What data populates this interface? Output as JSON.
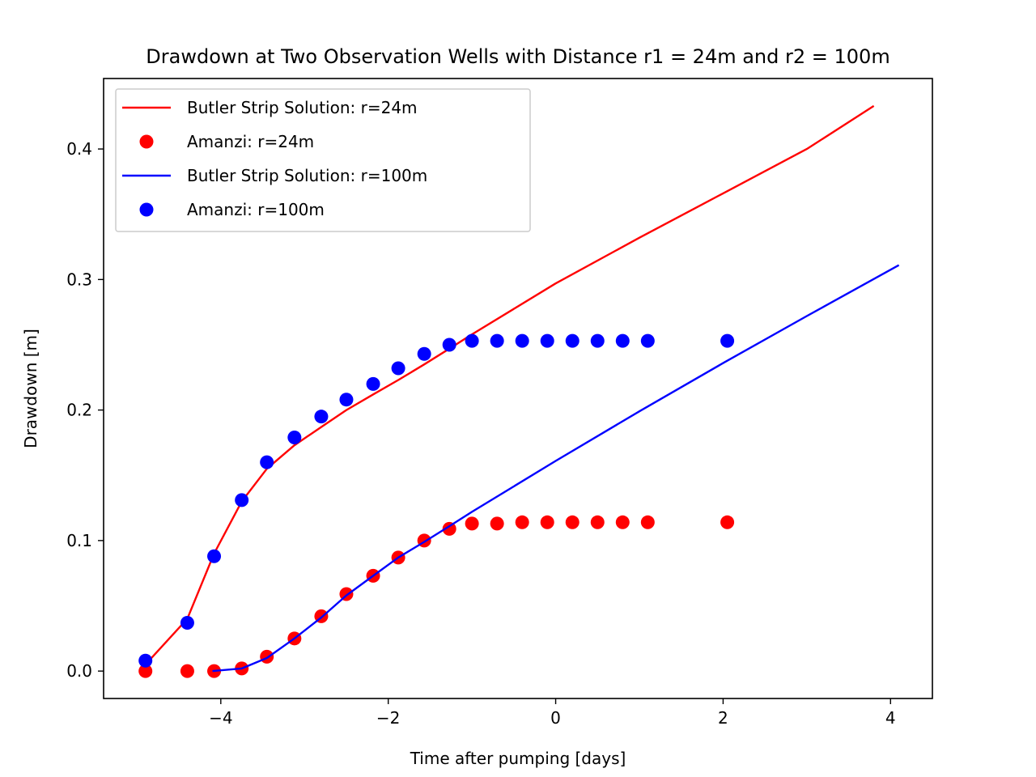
{
  "chart_data": {
    "type": "line",
    "title": "Drawdown at Two Observation Wells with Distance r1  = 24m and r2 = 100m",
    "xlabel": "Time after pumping [days]",
    "ylabel": "Drawdown [m]",
    "xlim": [
      -5.4,
      4.5
    ],
    "ylim": [
      -0.021,
      0.454
    ],
    "x_ticks": [
      -4,
      -2,
      0,
      2,
      4
    ],
    "x_tick_labels": [
      "−4",
      "−2",
      "0",
      "2",
      "4"
    ],
    "y_ticks": [
      0.0,
      0.1,
      0.2,
      0.3,
      0.4
    ],
    "y_tick_labels": [
      "0.0",
      "0.1",
      "0.2",
      "0.3",
      "0.4"
    ],
    "grid": false,
    "legend_position": "top-left",
    "series": [
      {
        "name": "Butler Strip Solution: r=24m",
        "kind": "line",
        "color": "#ff0000",
        "x": [
          -4.9,
          -4.4,
          -4.08,
          -3.75,
          -3.45,
          -3.12,
          -2.8,
          -2.5,
          -2.18,
          -1.88,
          -1.57,
          -1.27,
          -1.0,
          0.0,
          1.0,
          2.0,
          3.0,
          3.8
        ],
        "y": [
          0.005,
          0.04,
          0.09,
          0.13,
          0.155,
          0.173,
          0.187,
          0.2,
          0.212,
          0.223,
          0.235,
          0.247,
          0.258,
          0.297,
          0.332,
          0.366,
          0.4,
          0.433
        ]
      },
      {
        "name": "Amanzi: r=24m",
        "kind": "scatter",
        "color": "#ff0000",
        "x": [
          -4.9,
          -4.4,
          -4.08,
          -3.75,
          -3.45,
          -3.12,
          -2.8,
          -2.5,
          -2.18,
          -1.88,
          -1.57,
          -1.27,
          -1.0,
          -0.7,
          -0.4,
          -0.1,
          0.2,
          0.5,
          0.8,
          1.1,
          2.05
        ],
        "y": [
          0.0,
          0.0,
          0.0,
          0.002,
          0.011,
          0.025,
          0.042,
          0.059,
          0.073,
          0.087,
          0.1,
          0.109,
          0.113,
          0.113,
          0.114,
          0.114,
          0.114,
          0.114,
          0.114,
          0.114,
          0.114
        ]
      },
      {
        "name": "Butler Strip Solution: r=100m",
        "kind": "line",
        "color": "#0000ff",
        "x": [
          -4.1,
          -3.75,
          -3.45,
          -3.12,
          -2.8,
          -2.5,
          -2.18,
          -1.88,
          -1.57,
          -1.27,
          -1.0,
          0.0,
          1.0,
          2.0,
          3.0,
          4.1
        ],
        "y": [
          0.0,
          0.002,
          0.01,
          0.025,
          0.041,
          0.058,
          0.073,
          0.087,
          0.099,
          0.111,
          0.122,
          0.161,
          0.199,
          0.236,
          0.272,
          0.311
        ]
      },
      {
        "name": "Amanzi: r=100m",
        "kind": "scatter",
        "color": "#0000ff",
        "x": [
          -4.9,
          -4.4,
          -4.08,
          -3.75,
          -3.45,
          -3.12,
          -2.8,
          -2.5,
          -2.18,
          -1.88,
          -1.57,
          -1.27,
          -1.0,
          -0.7,
          -0.4,
          -0.1,
          0.2,
          0.5,
          0.8,
          1.1,
          2.05
        ],
        "y": [
          0.008,
          0.037,
          0.088,
          0.131,
          0.16,
          0.179,
          0.195,
          0.208,
          0.22,
          0.232,
          0.243,
          0.25,
          0.253,
          0.253,
          0.253,
          0.253,
          0.253,
          0.253,
          0.253,
          0.253,
          0.253
        ]
      }
    ]
  }
}
